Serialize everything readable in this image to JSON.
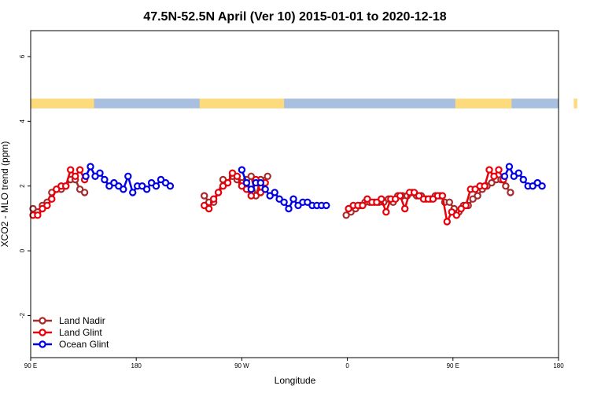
{
  "chart_data": {
    "type": "line",
    "title": "47.5N-52.5N April (Ver 10)   2015-01-01 to 2020-12-18",
    "xlabel": "Longitude",
    "ylabel": "XCO2 - MLO trend (ppm)",
    "x_ticks": [
      {
        "value": 90,
        "label": "90 E"
      },
      {
        "value": 180,
        "label": "180"
      },
      {
        "value": 270,
        "label": "90 W"
      },
      {
        "value": 360,
        "label": "0"
      },
      {
        "value": 450,
        "label": "90 E"
      },
      {
        "value": 540,
        "label": "180"
      }
    ],
    "y_ticks": [
      {
        "value": -2,
        "label": "-2"
      },
      {
        "value": 0,
        "label": "0"
      },
      {
        "value": 2,
        "label": "2"
      },
      {
        "value": 4,
        "label": "4"
      },
      {
        "value": 6,
        "label": "6"
      }
    ],
    "xlim": [
      90,
      540
    ],
    "ylim": [
      -3.3,
      6.8
    ],
    "grid": false,
    "legend_position": "bottom-left",
    "surface_strip": {
      "y_range": [
        4.4,
        4.7
      ],
      "land_color": "#FDDA7C",
      "ocean_color": "#A8BFDF",
      "land_segments": [
        [
          90,
          144
        ],
        [
          234,
          306
        ],
        [
          452,
          500
        ],
        [
          553,
          556
        ]
      ]
    },
    "series": [
      {
        "name": "Land Nadir",
        "color": "#A52A2A",
        "segments": [
          [
            [
              92,
              1.3
            ],
            [
              96,
              1.2
            ],
            [
              100,
              1.4
            ],
            [
              104,
              1.5
            ],
            [
              108,
              1.8
            ],
            [
              112,
              1.9
            ],
            [
              116,
              1.9
            ],
            [
              120,
              2.0
            ],
            [
              124,
              2.2
            ],
            [
              128,
              2.2
            ],
            [
              132,
              1.9
            ],
            [
              136,
              1.8
            ]
          ],
          [
            [
              238,
              1.7
            ],
            [
              242,
              1.5
            ],
            [
              246,
              1.5
            ],
            [
              250,
              1.8
            ],
            [
              254,
              2.2
            ],
            [
              258,
              2.1
            ],
            [
              262,
              2.3
            ],
            [
              266,
              2.2
            ],
            [
              270,
              2.1
            ],
            [
              274,
              2.2
            ],
            [
              278,
              2.3
            ],
            [
              282,
              1.7
            ],
            [
              286,
              2.2
            ],
            [
              292,
              2.3
            ]
          ],
          [
            [
              359,
              1.1
            ],
            [
              363,
              1.2
            ],
            [
              367,
              1.3
            ],
            [
              371,
              1.4
            ],
            [
              375,
              1.5
            ],
            [
              379,
              1.5
            ],
            [
              383,
              1.5
            ],
            [
              387,
              1.5
            ],
            [
              391,
              1.5
            ],
            [
              395,
              1.6
            ],
            [
              399,
              1.5
            ],
            [
              403,
              1.7
            ],
            [
              407,
              1.7
            ],
            [
              411,
              1.7
            ],
            [
              415,
              1.8
            ],
            [
              419,
              1.7
            ],
            [
              423,
              1.7
            ],
            [
              427,
              1.6
            ],
            [
              431,
              1.6
            ],
            [
              435,
              1.7
            ],
            [
              439,
              1.7
            ],
            [
              443,
              1.5
            ],
            [
              447,
              1.5
            ],
            [
              451,
              1.3
            ],
            [
              455,
              1.2
            ],
            [
              459,
              1.4
            ],
            [
              463,
              1.4
            ],
            [
              467,
              1.6
            ],
            [
              471,
              1.7
            ],
            [
              475,
              1.9
            ],
            [
              479,
              2.0
            ],
            [
              483,
              2.1
            ],
            [
              487,
              2.2
            ],
            [
              491,
              2.2
            ],
            [
              495,
              2.0
            ],
            [
              499,
              1.8
            ]
          ]
        ]
      },
      {
        "name": "Land Glint",
        "color": "#E8000B",
        "segments": [
          [
            [
              92,
              1.1
            ],
            [
              96,
              1.1
            ],
            [
              100,
              1.3
            ],
            [
              104,
              1.4
            ],
            [
              108,
              1.6
            ],
            [
              112,
              1.9
            ],
            [
              116,
              2.0
            ],
            [
              120,
              2.0
            ],
            [
              124,
              2.5
            ],
            [
              128,
              2.3
            ],
            [
              132,
              2.5
            ],
            [
              136,
              2.2
            ]
          ],
          [
            [
              238,
              1.4
            ],
            [
              242,
              1.3
            ],
            [
              246,
              1.6
            ],
            [
              250,
              1.8
            ],
            [
              254,
              2.0
            ],
            [
              258,
              2.1
            ],
            [
              262,
              2.4
            ],
            [
              266,
              2.3
            ],
            [
              270,
              2.0
            ],
            [
              274,
              1.9
            ],
            [
              278,
              1.7
            ],
            [
              282,
              2.2
            ],
            [
              286,
              1.8
            ],
            [
              290,
              2.1
            ]
          ],
          [
            [
              361,
              1.3
            ],
            [
              365,
              1.4
            ],
            [
              369,
              1.4
            ],
            [
              373,
              1.4
            ],
            [
              377,
              1.6
            ],
            [
              381,
              1.5
            ],
            [
              385,
              1.5
            ],
            [
              389,
              1.6
            ],
            [
              393,
              1.2
            ],
            [
              397,
              1.6
            ],
            [
              401,
              1.6
            ],
            [
              405,
              1.7
            ],
            [
              409,
              1.3
            ],
            [
              413,
              1.8
            ],
            [
              417,
              1.8
            ],
            [
              421,
              1.7
            ],
            [
              425,
              1.6
            ],
            [
              429,
              1.6
            ],
            [
              433,
              1.6
            ],
            [
              437,
              1.7
            ],
            [
              441,
              1.7
            ],
            [
              445,
              0.9
            ],
            [
              449,
              1.2
            ],
            [
              453,
              1.1
            ],
            [
              457,
              1.3
            ],
            [
              461,
              1.4
            ],
            [
              465,
              1.9
            ],
            [
              469,
              1.9
            ],
            [
              473,
              2.0
            ],
            [
              477,
              2.0
            ],
            [
              481,
              2.5
            ],
            [
              485,
              2.3
            ],
            [
              489,
              2.5
            ],
            [
              493,
              2.2
            ]
          ]
        ]
      },
      {
        "name": "Ocean Glint",
        "color": "#0000E6",
        "segments": [
          [
            [
              137,
              2.3
            ],
            [
              141,
              2.6
            ],
            [
              145,
              2.3
            ],
            [
              149,
              2.4
            ],
            [
              153,
              2.2
            ],
            [
              157,
              2.0
            ],
            [
              161,
              2.1
            ],
            [
              165,
              2.0
            ],
            [
              169,
              1.9
            ],
            [
              173,
              2.3
            ],
            [
              177,
              1.8
            ],
            [
              181,
              2.0
            ],
            [
              185,
              2.0
            ],
            [
              189,
              1.9
            ],
            [
              193,
              2.1
            ],
            [
              197,
              2.0
            ],
            [
              201,
              2.2
            ],
            [
              205,
              2.1
            ],
            [
              209,
              2.0
            ]
          ],
          [
            [
              270,
              2.5
            ],
            [
              274,
              2.1
            ],
            [
              278,
              1.9
            ],
            [
              282,
              2.1
            ],
            [
              286,
              2.1
            ],
            [
              290,
              1.9
            ],
            [
              294,
              1.7
            ],
            [
              298,
              1.8
            ],
            [
              302,
              1.6
            ],
            [
              306,
              1.5
            ],
            [
              310,
              1.3
            ],
            [
              314,
              1.6
            ],
            [
              318,
              1.4
            ],
            [
              322,
              1.5
            ],
            [
              326,
              1.5
            ],
            [
              330,
              1.4
            ],
            [
              334,
              1.4
            ],
            [
              338,
              1.4
            ],
            [
              342,
              1.4
            ]
          ],
          [
            [
              494,
              2.3
            ],
            [
              498,
              2.6
            ],
            [
              502,
              2.3
            ],
            [
              506,
              2.4
            ],
            [
              510,
              2.2
            ],
            [
              514,
              2.0
            ],
            [
              518,
              2.0
            ],
            [
              522,
              2.1
            ],
            [
              526,
              2.0
            ]
          ]
        ]
      }
    ]
  }
}
